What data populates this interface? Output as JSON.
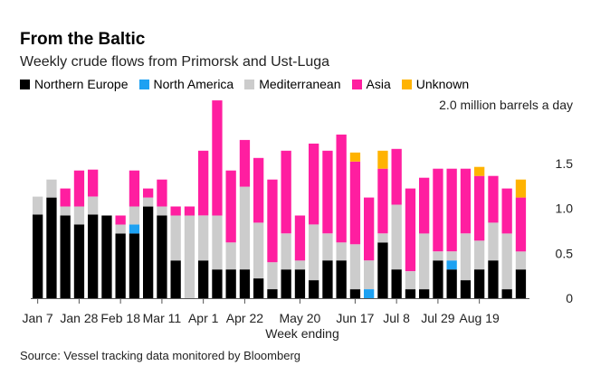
{
  "title": "From the Baltic",
  "subtitle": "Weekly crude flows from Primorsk and Ust-Luga",
  "source": "Source: Vessel tracking data monitored by Bloomberg",
  "chart_data": {
    "type": "bar",
    "stacked": true,
    "xlabel": "Week ending",
    "ylabel": "2.0 million barrels a day",
    "ylim": [
      0,
      2.0
    ],
    "yticks": [
      "0",
      "0.5",
      "1.0",
      "1.5"
    ],
    "ytick_values": [
      0,
      0.5,
      1.0,
      1.5
    ],
    "xtick_labels": [
      "Jan 7",
      "Jan 28",
      "Feb 18",
      "Mar 11",
      "Apr 1",
      "Apr 22",
      "May 20",
      "Jun 17",
      "Jul 8",
      "Jul 29",
      "Aug 19"
    ],
    "xtick_positions": [
      0,
      3,
      6,
      9,
      12,
      15,
      19,
      23,
      26,
      29,
      32
    ],
    "grid": false,
    "legend_position": "top-left",
    "colors": {
      "Northern Europe": "#000000",
      "North America": "#1da1f2",
      "Mediterranean": "#cccccc",
      "Asia": "#ff1ea0",
      "Unknown": "#ffb300"
    },
    "series": [
      {
        "name": "Northern Europe",
        "values": [
          0.93,
          1.12,
          0.92,
          0.82,
          0.93,
          0.92,
          0.72,
          0.72,
          1.02,
          0.92,
          0.42,
          0.0,
          0.42,
          0.32,
          0.32,
          0.32,
          0.22,
          0.1,
          0.32,
          0.32,
          0.2,
          0.42,
          0.42,
          0.1,
          0.0,
          0.62,
          0.32,
          0.1,
          0.1,
          0.42,
          0.32,
          0.2,
          0.32,
          0.42,
          0.1,
          0.32
        ]
      },
      {
        "name": "North America",
        "values": [
          0,
          0,
          0,
          0,
          0,
          0,
          0,
          0.1,
          0,
          0,
          0,
          0,
          0,
          0,
          0,
          0,
          0,
          0,
          0,
          0,
          0,
          0,
          0,
          0,
          0.1,
          0,
          0,
          0,
          0,
          0,
          0.1,
          0,
          0,
          0,
          0,
          0
        ]
      },
      {
        "name": "Mediterranean",
        "values": [
          0.2,
          0.2,
          0.1,
          0.2,
          0.2,
          0,
          0.1,
          0.2,
          0.1,
          0.1,
          0.5,
          0.92,
          0.5,
          0.6,
          0.3,
          0.92,
          0.62,
          0.3,
          0.4,
          0.1,
          0.62,
          0.3,
          0.2,
          0.5,
          0.32,
          0.1,
          0.72,
          0.2,
          0.62,
          0.1,
          0.1,
          0.52,
          0.32,
          0.42,
          0.62,
          0.2
        ]
      },
      {
        "name": "Asia",
        "values": [
          0,
          0,
          0.2,
          0.4,
          0.3,
          0,
          0.1,
          0.4,
          0.1,
          0.3,
          0.1,
          0.1,
          0.72,
          1.28,
          0.8,
          0.52,
          0.72,
          0.92,
          0.92,
          0.5,
          0.9,
          0.92,
          1.2,
          0.92,
          0.7,
          0.72,
          0.62,
          0.92,
          0.62,
          0.92,
          0.92,
          0.72,
          0.72,
          0.52,
          0.5,
          0.6
        ]
      },
      {
        "name": "Unknown",
        "values": [
          0,
          0,
          0,
          0,
          0,
          0,
          0,
          0,
          0,
          0,
          0,
          0,
          0,
          0,
          0,
          0,
          0,
          0,
          0,
          0,
          0,
          0,
          0,
          0.1,
          0,
          0.2,
          0,
          0,
          0,
          0,
          0,
          0,
          0.1,
          0,
          0,
          0.2
        ]
      }
    ]
  }
}
